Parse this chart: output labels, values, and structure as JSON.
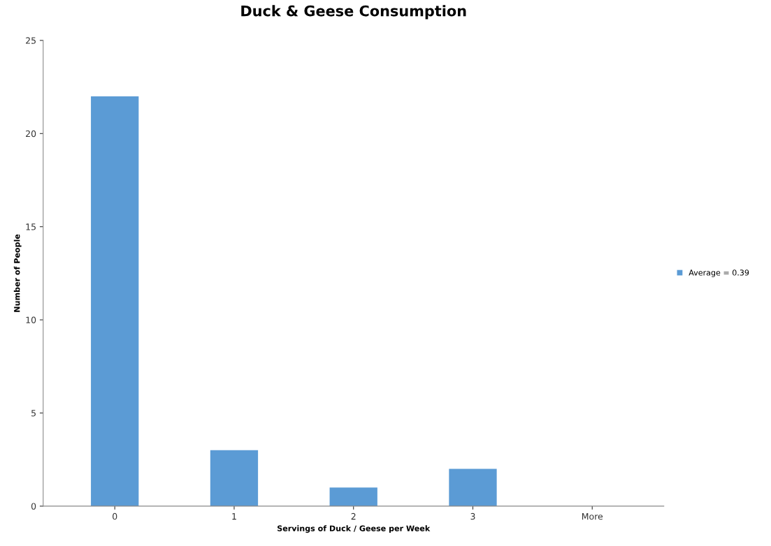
{
  "chart_data": {
    "type": "bar",
    "title": "Duck & Geese Consumption",
    "xlabel": "Servings of Duck / Geese per Week",
    "ylabel": "Number of People",
    "categories": [
      "0",
      "1",
      "2",
      "3",
      "More"
    ],
    "series": [
      {
        "name": "Average = 0.39",
        "color": "#5b9bd5",
        "values": [
          22,
          3,
          1,
          2,
          0
        ]
      }
    ],
    "ylim": [
      0,
      25
    ],
    "yticks": [
      0,
      5,
      10,
      15,
      20,
      25
    ],
    "grid": false,
    "legend": "right"
  }
}
